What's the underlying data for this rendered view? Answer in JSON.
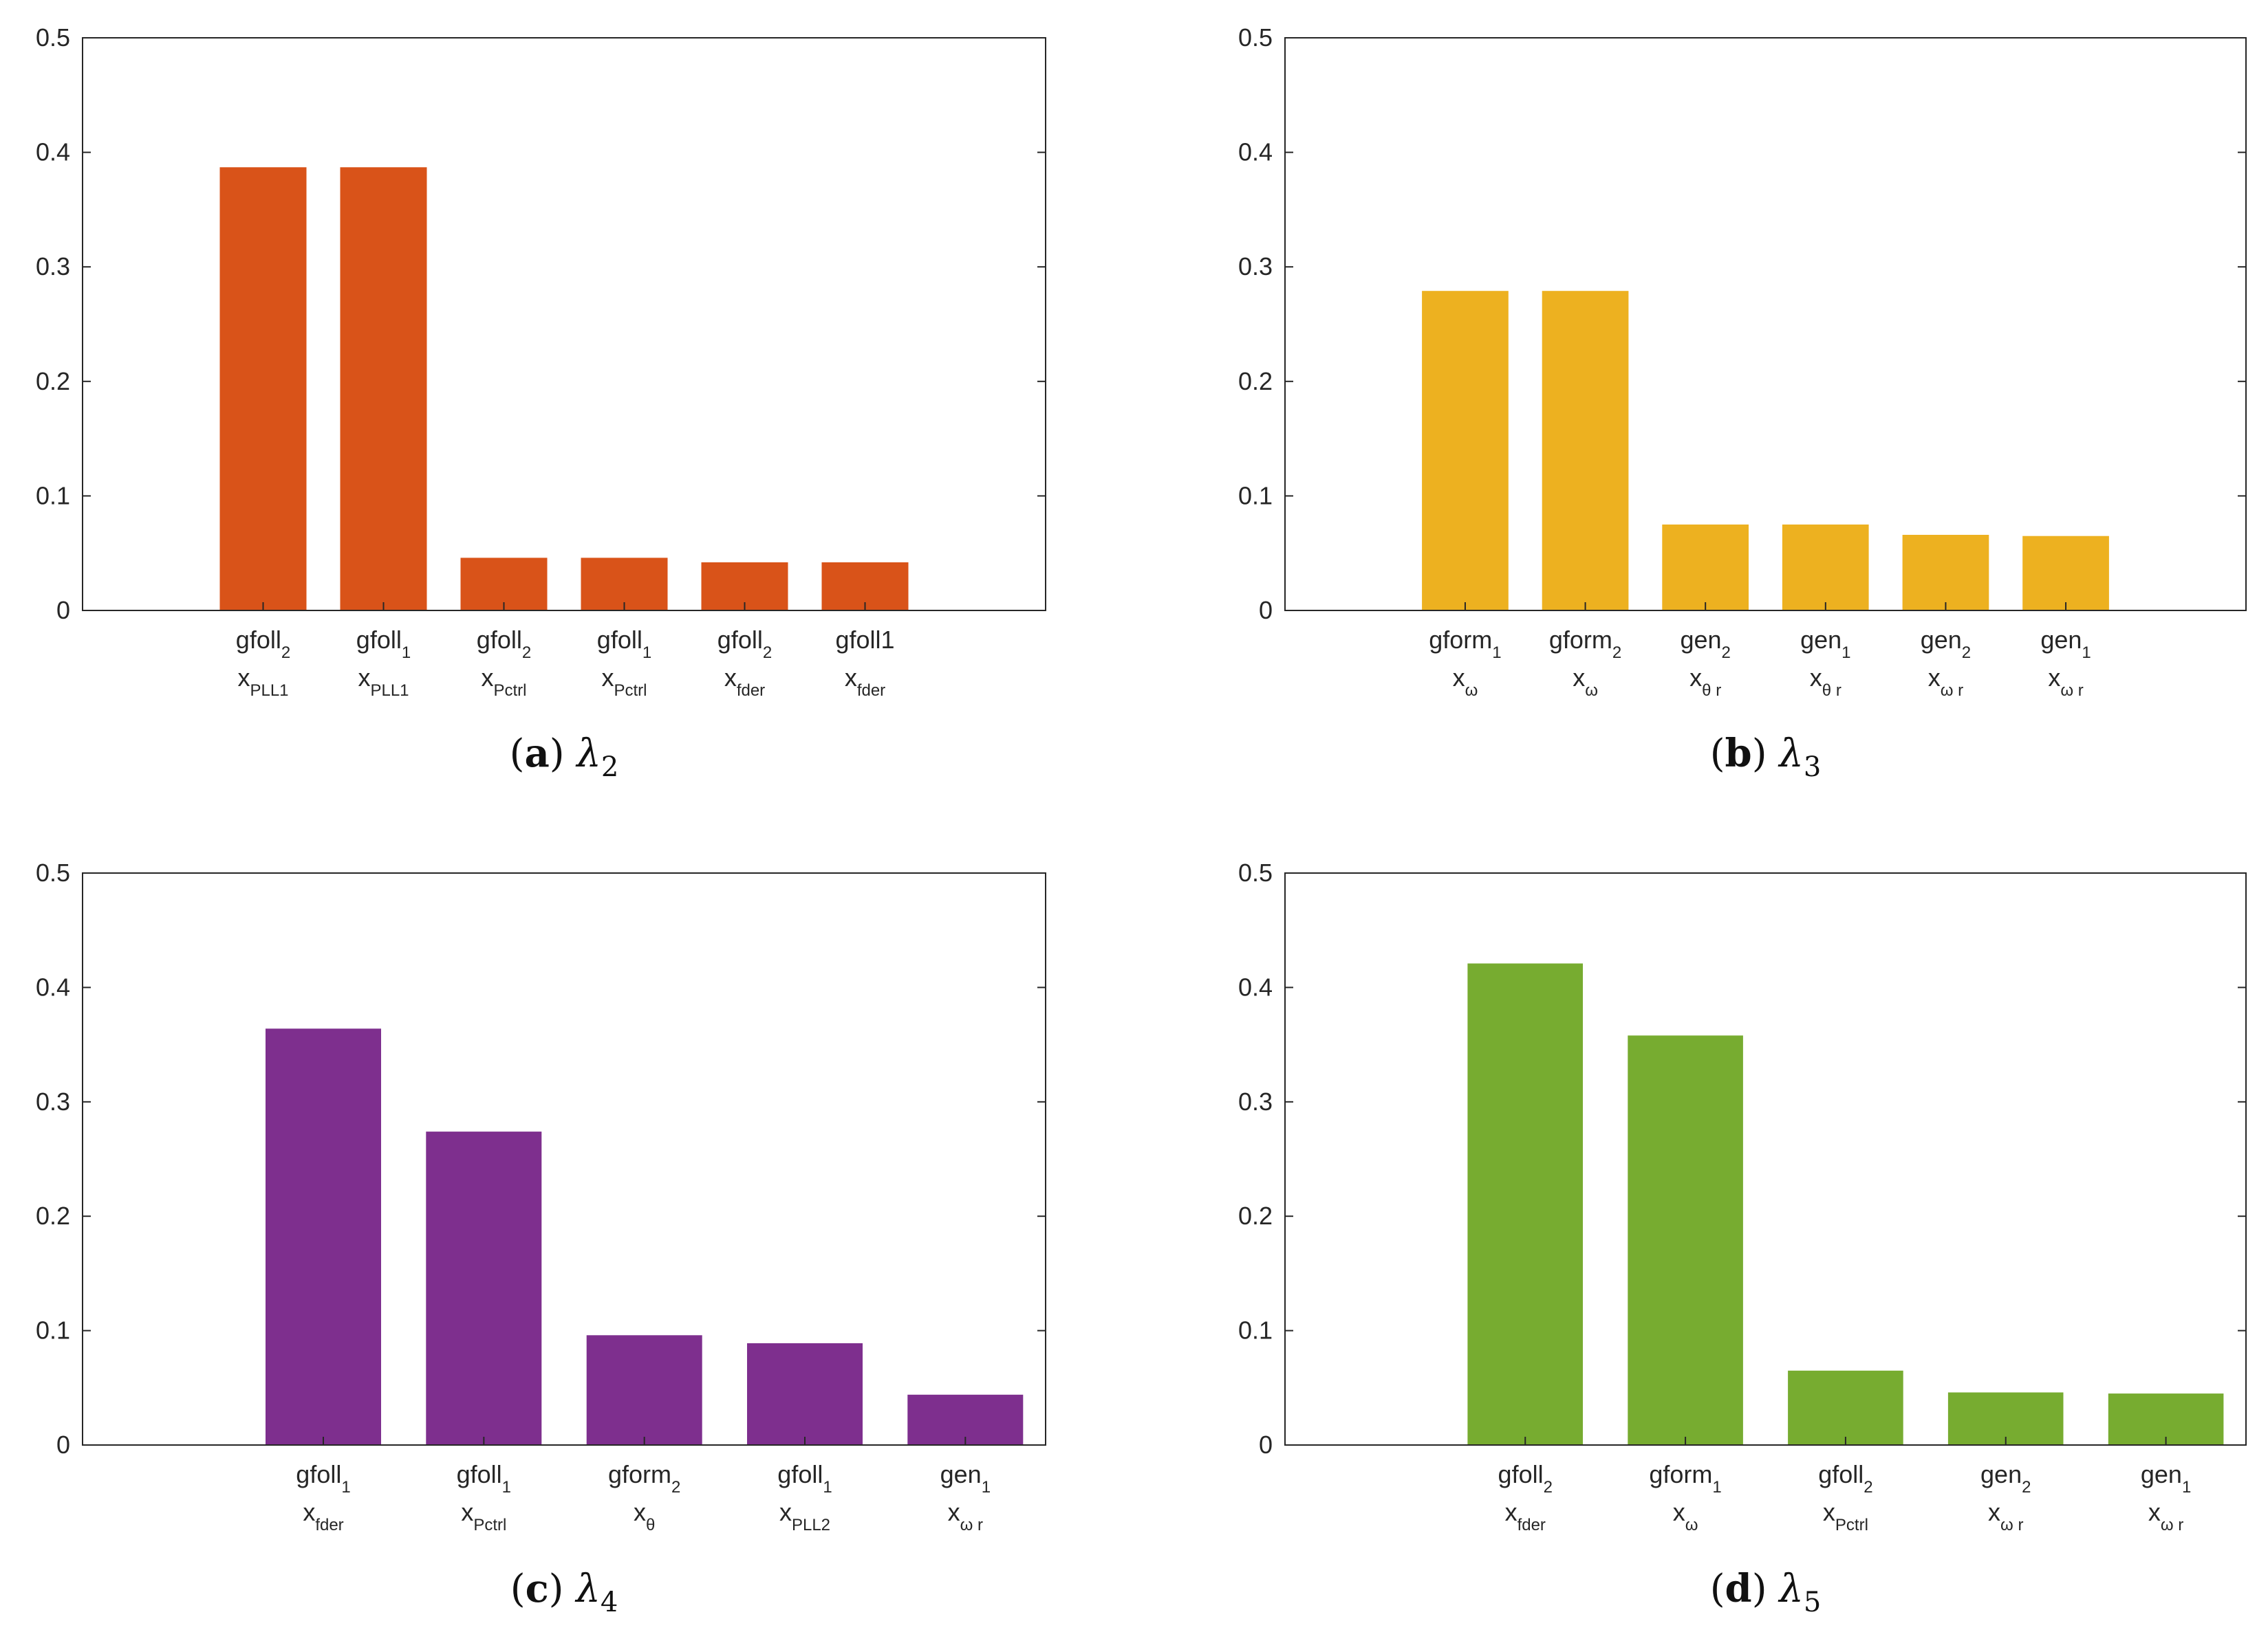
{
  "chart_data": [
    {
      "type": "bar",
      "color": "#D95319",
      "caption": {
        "letter": "a",
        "symbol": "λ",
        "index": "2"
      },
      "ylim": [
        0,
        0.5
      ],
      "yticks": [
        0,
        0.1,
        0.2,
        0.3,
        0.4,
        0.5
      ],
      "ytick_labels": [
        "0",
        "0.1",
        "0.2",
        "0.3",
        "0.4",
        "0.5"
      ],
      "categories": [
        {
          "top": "gfoll",
          "top_sub": "2",
          "bottom": "x",
          "bottom_sub": "PLL1"
        },
        {
          "top": "gfoll",
          "top_sub": "1",
          "bottom": "x",
          "bottom_sub": "PLL1"
        },
        {
          "top": "gfoll",
          "top_sub": "2",
          "bottom": "x",
          "bottom_sub": "Pctrl"
        },
        {
          "top": "gfoll",
          "top_sub": "1",
          "bottom": "x",
          "bottom_sub": "Pctrl"
        },
        {
          "top": "gfoll",
          "top_sub": "2",
          "bottom": "x",
          "bottom_sub": "fder"
        },
        {
          "top": "gfoll1",
          "top_sub": "",
          "bottom": "x",
          "bottom_sub": "fder"
        }
      ],
      "values": [
        0.387,
        0.387,
        0.046,
        0.046,
        0.042,
        0.042
      ]
    },
    {
      "type": "bar",
      "color": "#EDB120",
      "caption": {
        "letter": "b",
        "symbol": "λ",
        "index": "3"
      },
      "ylim": [
        0,
        0.5
      ],
      "yticks": [
        0,
        0.1,
        0.2,
        0.3,
        0.4,
        0.5
      ],
      "ytick_labels": [
        "0",
        "0.1",
        "0.2",
        "0.3",
        "0.4",
        "0.5"
      ],
      "categories": [
        {
          "top": "gform",
          "top_sub": "1",
          "bottom": "x",
          "bottom_sub": "ω"
        },
        {
          "top": "gform",
          "top_sub": "2",
          "bottom": "x",
          "bottom_sub": "ω"
        },
        {
          "top": "gen",
          "top_sub": "2",
          "bottom": "x",
          "bottom_sub": "θ r"
        },
        {
          "top": "gen",
          "top_sub": "1",
          "bottom": "x",
          "bottom_sub": "θ r"
        },
        {
          "top": "gen",
          "top_sub": "2",
          "bottom": "x",
          "bottom_sub": "ω r"
        },
        {
          "top": "gen",
          "top_sub": "1",
          "bottom": "x",
          "bottom_sub": "ω r"
        }
      ],
      "values": [
        0.279,
        0.279,
        0.075,
        0.075,
        0.066,
        0.065
      ]
    },
    {
      "type": "bar",
      "color": "#7E2F8E",
      "caption": {
        "letter": "c",
        "symbol": "λ",
        "index": "4"
      },
      "ylim": [
        0,
        0.5
      ],
      "yticks": [
        0,
        0.1,
        0.2,
        0.3,
        0.4,
        0.5
      ],
      "ytick_labels": [
        "0",
        "0.1",
        "0.2",
        "0.3",
        "0.4",
        "0.5"
      ],
      "categories": [
        {
          "top": "gfoll",
          "top_sub": "1",
          "bottom": "x",
          "bottom_sub": "fder"
        },
        {
          "top": "gfoll",
          "top_sub": "1",
          "bottom": "x",
          "bottom_sub": "Pctrl"
        },
        {
          "top": "gform",
          "top_sub": "2",
          "bottom": "x",
          "bottom_sub": "θ"
        },
        {
          "top": "gfoll",
          "top_sub": "1",
          "bottom": "x",
          "bottom_sub": "PLL2"
        },
        {
          "top": "gen",
          "top_sub": "1",
          "bottom": "x",
          "bottom_sub": "ω r"
        }
      ],
      "values": [
        0.364,
        0.274,
        0.096,
        0.089,
        0.044
      ]
    },
    {
      "type": "bar",
      "color": "#77AC30",
      "caption": {
        "letter": "d",
        "symbol": "λ",
        "index": "5"
      },
      "ylim": [
        0,
        0.5
      ],
      "yticks": [
        0,
        0.1,
        0.2,
        0.3,
        0.4,
        0.5
      ],
      "ytick_labels": [
        "0",
        "0.1",
        "0.2",
        "0.3",
        "0.4",
        "0.5"
      ],
      "categories": [
        {
          "top": "gfoll",
          "top_sub": "2",
          "bottom": "x",
          "bottom_sub": "fder"
        },
        {
          "top": "gform",
          "top_sub": "1",
          "bottom": "x",
          "bottom_sub": "ω"
        },
        {
          "top": "gfoll",
          "top_sub": "2",
          "bottom": "x",
          "bottom_sub": "Pctrl"
        },
        {
          "top": "gen",
          "top_sub": "2",
          "bottom": "x",
          "bottom_sub": "ω r"
        },
        {
          "top": "gen",
          "top_sub": "1",
          "bottom": "x",
          "bottom_sub": "ω r"
        }
      ],
      "values": [
        0.421,
        0.358,
        0.065,
        0.046,
        0.045
      ]
    }
  ]
}
